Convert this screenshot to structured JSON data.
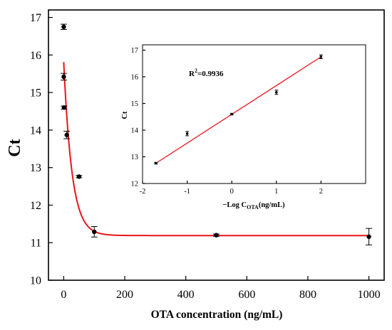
{
  "chart_data": [
    {
      "type": "scatter",
      "xlabel": "OTA concentration (ng/mL)",
      "ylabel": "Ct",
      "xlim": [
        -50,
        1050
      ],
      "ylim": [
        10,
        17.2
      ],
      "xticks": [
        0,
        200,
        400,
        600,
        800,
        1000
      ],
      "yticks": [
        10,
        11,
        12,
        13,
        14,
        15,
        16,
        17
      ],
      "tick_labels_x": [
        "0",
        "200",
        "400",
        "600",
        "800",
        "1000"
      ],
      "tick_labels_y": [
        "10",
        "11",
        "12",
        "13",
        "14",
        "15",
        "16",
        "17"
      ],
      "grid": false,
      "points": [
        {
          "x": 0.01,
          "y": 16.75,
          "err": 0.07
        },
        {
          "x": 0.1,
          "y": 15.42,
          "err": 0.09
        },
        {
          "x": 1,
          "y": 14.6,
          "err": 0.04
        },
        {
          "x": 10,
          "y": 13.87,
          "err": 0.1
        },
        {
          "x": 50,
          "y": 12.76,
          "err": 0.03
        },
        {
          "x": 100,
          "y": 11.29,
          "err": 0.14
        },
        {
          "x": 500,
          "y": 11.2,
          "err": 0.03
        },
        {
          "x": 1000,
          "y": 11.16,
          "err": 0.22
        }
      ],
      "fit_curve": {
        "type": "exponential_decay",
        "y0": 11.19,
        "A": 4.62,
        "t": 27,
        "color": "#e8141b"
      }
    },
    {
      "type": "scatter",
      "xlabel_prefix": "−Log C",
      "xlabel_sub": "OTA",
      "xlabel_suffix": "(ng/mL)",
      "ylabel": "Ct",
      "xlim": [
        -2,
        3
      ],
      "ylim": [
        12,
        17.2
      ],
      "xticks": [
        -2,
        -1,
        0,
        1,
        2
      ],
      "yticks": [
        12,
        13,
        14,
        15,
        16,
        17
      ],
      "tick_labels_x": [
        "-2",
        "-1",
        "0",
        "1",
        "2"
      ],
      "tick_labels_y": [
        "12",
        "13",
        "14",
        "15",
        "16",
        "17"
      ],
      "grid": false,
      "annotation_r2_prefix": "R",
      "annotation_r2_sup": "2",
      "annotation_r2_value": "=0.9936",
      "points": [
        {
          "x": -1.7,
          "y": 12.76,
          "err": 0.03
        },
        {
          "x": -1,
          "y": 13.87,
          "err": 0.08
        },
        {
          "x": 0,
          "y": 14.6,
          "err": 0.03
        },
        {
          "x": 1,
          "y": 15.42,
          "err": 0.08
        },
        {
          "x": 2,
          "y": 16.75,
          "err": 0.07
        }
      ],
      "fit_line": {
        "x_start": -1.7,
        "x_end": 2,
        "y_start": 12.76,
        "y_end": 16.75,
        "color": "#e8141b"
      }
    }
  ]
}
